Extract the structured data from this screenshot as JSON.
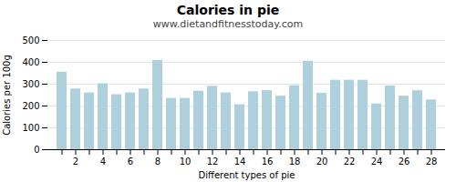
{
  "chart_data": {
    "type": "bar",
    "title": "Calories in pie",
    "subtitle": "www.dietandfitnesstoday.com",
    "xlabel": "Different types of pie",
    "ylabel": "Calories per 100g",
    "categories": [
      null,
      "2",
      null,
      "4",
      null,
      "6",
      null,
      "8",
      null,
      "10",
      null,
      "12",
      null,
      "14",
      null,
      "16",
      null,
      "18",
      null,
      "20",
      null,
      "22",
      null,
      "24",
      null,
      "26",
      null,
      "28"
    ],
    "values": [
      355,
      278,
      260,
      302,
      252,
      260,
      278,
      408,
      235,
      235,
      268,
      290,
      260,
      206,
      265,
      270,
      245,
      293,
      405,
      258,
      318,
      318,
      318,
      210,
      292,
      245,
      270,
      228
    ],
    "color": "#aecfdc",
    "ylim": [
      0,
      500
    ],
    "yticks": [
      0,
      100,
      200,
      300,
      400,
      500
    ],
    "grid": true
  }
}
